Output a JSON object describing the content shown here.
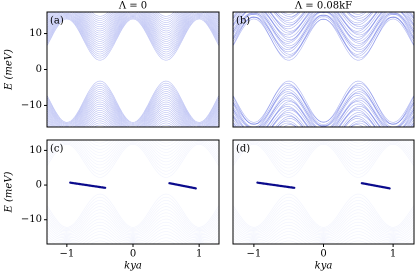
{
  "chart_data": [
    {
      "type": "band",
      "label": "(a)",
      "title": "Λ = 0",
      "ylabel": "E (meV)",
      "xlim": [
        -1.3,
        1.3
      ],
      "ylim": [
        -16,
        16
      ],
      "yticks": [
        {
          "value": -10,
          "label": "−10"
        },
        0,
        10
      ]
    },
    {
      "type": "band",
      "label": "(b)",
      "title": "Λ = 0.08kF",
      "xlim": [
        -1.3,
        1.3
      ],
      "ylim": [
        -16,
        16
      ]
    },
    {
      "type": "spectral",
      "label": "(c)",
      "ylabel": "E (meV)",
      "xlabel": "kya",
      "xlim": [
        -1.3,
        1.3
      ],
      "ylim": [
        -17,
        13
      ],
      "xticks": [
        {
          "value": -1,
          "label": "−1"
        },
        0,
        1
      ],
      "yticks": [
        {
          "value": -10,
          "label": "−10"
        },
        0,
        10
      ]
    },
    {
      "type": "spectral",
      "label": "(d)",
      "xlabel": "kya",
      "xlim": [
        -1.3,
        1.3
      ],
      "ylim": [
        -17,
        13
      ],
      "xticks": [
        {
          "value": -1,
          "label": "−1"
        },
        0,
        1
      ]
    }
  ]
}
